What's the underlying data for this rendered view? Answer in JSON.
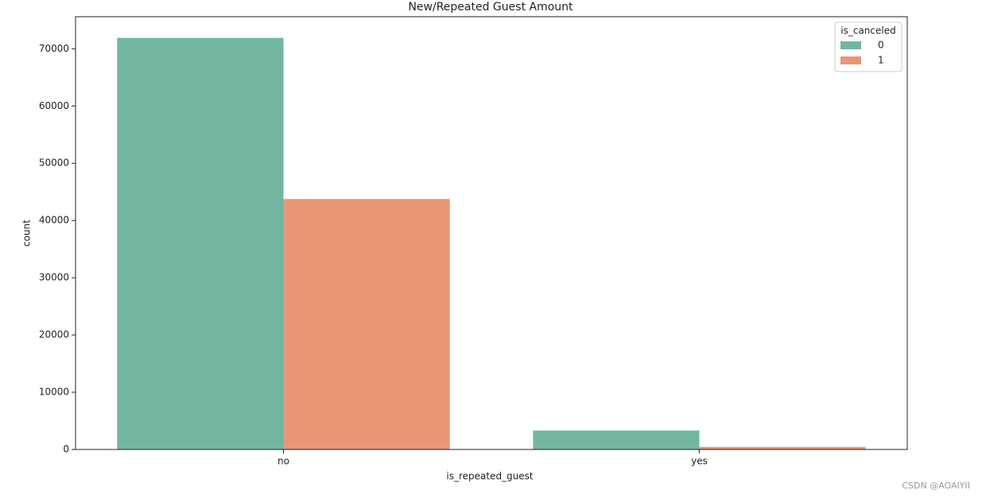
{
  "chart_data": {
    "type": "bar",
    "title": "New/Repeated Guest Amount",
    "x_label": "is_repeated_guest",
    "y_label": "count",
    "categories": [
      "no",
      "yes"
    ],
    "legend_title": "is_canceled",
    "legend_position": "upper right",
    "series": [
      {
        "name": "0",
        "color": "#72b6a1",
        "values": [
          71900,
          3300
        ]
      },
      {
        "name": "1",
        "color": "#e99675",
        "values": [
          43750,
          450
        ]
      }
    ],
    "ylim": [
      0,
      75600
    ],
    "yticks": [
      0,
      10000,
      20000,
      30000,
      40000,
      50000,
      60000,
      70000
    ],
    "grid": false,
    "watermark": "CSDN @AOAIYII"
  }
}
